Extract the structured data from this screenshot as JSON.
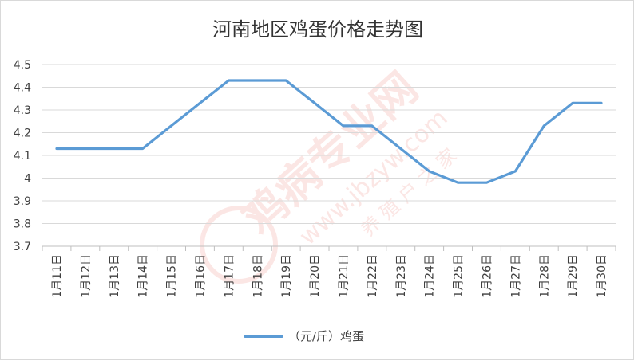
{
  "chart_data": {
    "type": "line",
    "title": "河南地区鸡蛋价格走势图",
    "categories": [
      "1月11日",
      "1月12日",
      "1月13日",
      "1月14日",
      "1月15日",
      "1月16日",
      "1月17日",
      "1月18日",
      "1月19日",
      "1月20日",
      "1月21日",
      "1月22日",
      "1月23日",
      "1月24日",
      "1月25日",
      "1月26日",
      "1月27日",
      "1月28日",
      "1月29日",
      "1月30日"
    ],
    "series": [
      {
        "name": "（元/斤）鸡蛋",
        "values": [
          4.13,
          4.13,
          4.13,
          4.13,
          4.23,
          4.33,
          4.43,
          4.43,
          4.43,
          4.33,
          4.23,
          4.23,
          4.13,
          4.03,
          3.98,
          3.98,
          4.03,
          4.23,
          4.33,
          4.33
        ],
        "color": "#5b9bd5"
      }
    ],
    "ylim": [
      3.7,
      4.5
    ],
    "yticks": [
      "3.7",
      "3.8",
      "3.9",
      "4",
      "4.1",
      "4.2",
      "4.3",
      "4.4",
      "4.5"
    ],
    "grid": true,
    "legend_position": "bottom"
  },
  "watermark": {
    "main": "鸡病专业网",
    "url": "www.jbzyw.com",
    "sub": "养 殖 户 之 家",
    "color": "#e8443a"
  }
}
